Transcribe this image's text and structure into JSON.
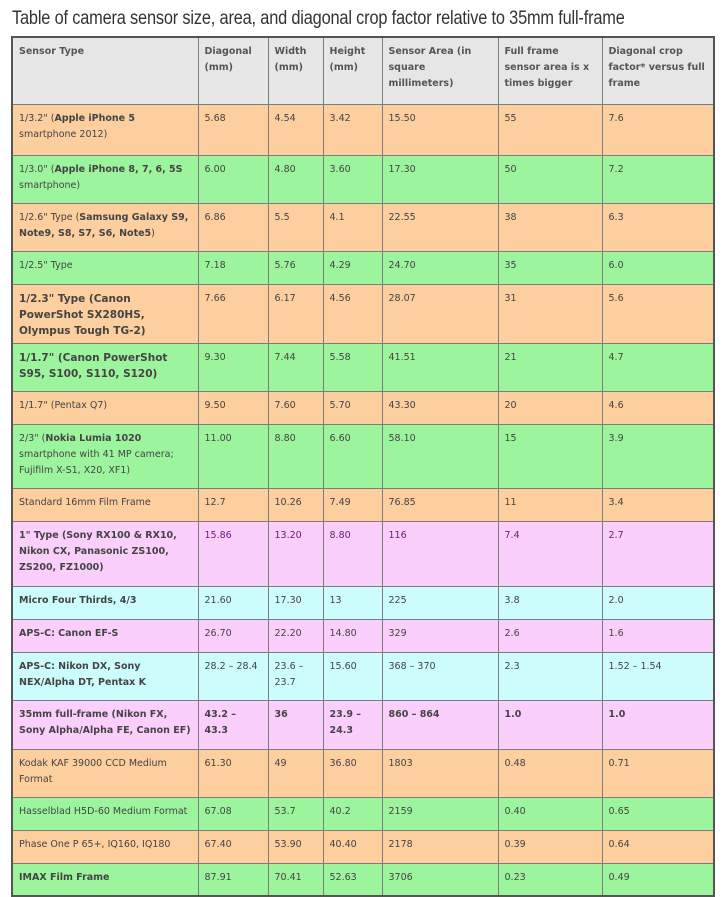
{
  "title": "Table of camera sensor size, area, and diagonal crop factor relative to 35mm full-frame",
  "headers": [
    "Sensor Type",
    "Diagonal (mm)",
    "Width (mm)",
    "Height (mm)",
    "Sensor Area (in square millimeters)",
    "Full frame sensor area is x times bigger",
    "Diagonal crop factor* versus full frame"
  ],
  "rows": [
    {
      "type_prefix": "1/3.2\" (",
      "type_bold": "Apple iPhone 5",
      "type_suffix": " smartphone 2012)",
      "diagonal": "5.68",
      "width": "4.54",
      "height": "3.42",
      "area": "15.50",
      "times": "55",
      "crop": "7.6"
    },
    {
      "type_prefix": "1/3.0\" (",
      "type_bold": "Apple iPhone 8, 7, 6, 5S",
      "type_suffix": " smartphone)",
      "diagonal": "6.00",
      "width": "4.80",
      "height": "3.60",
      "area": "17.30",
      "times": "50",
      "crop": "7.2"
    },
    {
      "type_prefix": "1/2.6\" Type (",
      "type_bold": "Samsung Galaxy S9, Note9, S8, S7, S6, Note5",
      "type_suffix": ")",
      "diagonal": "6.86",
      "width": "5.5",
      "height": "4.1",
      "area": "22.55",
      "times": "38",
      "crop": "6.3"
    },
    {
      "type_prefix": "1/2.5\" Type",
      "type_bold": "",
      "type_suffix": "",
      "diagonal": "7.18",
      "width": "5.76",
      "height": "4.29",
      "area": "24.70",
      "times": "35",
      "crop": "6.0"
    },
    {
      "type_prefix": "",
      "type_bold": "1/2.3\" Type (Canon PowerShot SX280HS, Olympus Tough TG-2)",
      "type_suffix": "",
      "diagonal": "7.66",
      "width": "6.17",
      "height": "4.56",
      "area": "28.07",
      "times": "31",
      "crop": "5.6"
    },
    {
      "type_prefix": "",
      "type_bold": "1/1.7\" (Canon PowerShot S95, S100, S110, S120)",
      "type_suffix": "",
      "diagonal": "9.30",
      "width": "7.44",
      "height": "5.58",
      "area": "41.51",
      "times": "21",
      "crop": "4.7"
    },
    {
      "type_prefix": "1/1.7\" (Pentax Q7)",
      "type_bold": "",
      "type_suffix": "",
      "diagonal": "9.50",
      "width": "7.60",
      "height": "5.70",
      "area": "43.30",
      "times": "20",
      "crop": "4.6"
    },
    {
      "type_prefix": "2/3\" (",
      "type_bold": "Nokia Lumia 1020",
      "type_suffix": " smartphone with 41 MP camera; Fujifilm X-S1, X20, XF1)",
      "diagonal": "11.00",
      "width": "8.80",
      "height": "6.60",
      "area": "58.10",
      "times": "15",
      "crop": "3.9"
    },
    {
      "type_prefix": "Standard 16mm Film Frame",
      "type_bold": "",
      "type_suffix": "",
      "diagonal": "12.7",
      "width": "10.26",
      "height": "7.49",
      "area": "76.85",
      "times": "11",
      "crop": "3.4"
    },
    {
      "type_prefix": "",
      "type_bold": "1\" Type (Sony RX100 & RX10, Nikon CX, Panasonic ZS100, ZS200, FZ1000)",
      "type_suffix": "",
      "diagonal": "15.86",
      "width": "13.20",
      "height": "8.80",
      "area": "116",
      "times": "7.4",
      "crop": "2.7"
    },
    {
      "type_prefix": "",
      "type_bold": "Micro Four Thirds, 4/3",
      "type_suffix": "",
      "diagonal": "21.60",
      "width": "17.30",
      "height": "13",
      "area": "225",
      "times": "3.8",
      "crop": "2.0"
    },
    {
      "type_prefix": "",
      "type_bold": "APS-C: Canon EF-S",
      "type_suffix": "",
      "diagonal": "26.70",
      "width": "22.20",
      "height": "14.80",
      "area": "329",
      "times": "2.6",
      "crop": "1.6"
    },
    {
      "type_prefix": "",
      "type_bold": "APS-C: Nikon DX, Sony NEX/Alpha DT, Pentax K",
      "type_suffix": "",
      "diagonal": "28.2 – 28.4",
      "width": "23.6 – 23.7",
      "height": "15.60",
      "area": "368 – 370",
      "times": "2.3",
      "crop": "1.52 – 1.54"
    },
    {
      "type_prefix": "",
      "type_bold": "35mm full-frame (Nikon FX, Sony Alpha/Alpha FE, Canon EF)",
      "type_suffix": "",
      "diagonal": "43.2 – 43.3",
      "width": "36",
      "height": "23.9 – 24.3",
      "area": "860 – 864",
      "times": "1.0",
      "crop": "1.0"
    },
    {
      "type_prefix": "Kodak KAF 39000 CCD Medium Format",
      "type_bold": "",
      "type_suffix": "",
      "diagonal": "61.30",
      "width": "49",
      "height": "36.80",
      "area": "1803",
      "times": "0.48",
      "crop": "0.71"
    },
    {
      "type_prefix": "Hasselblad H5D-60 Medium Format",
      "type_bold": "",
      "type_suffix": "",
      "diagonal": "67.08",
      "width": "53.7",
      "height": "40.2",
      "area": "2159",
      "times": "0.40",
      "crop": "0.65"
    },
    {
      "type_prefix": "Phase One P 65+, IQ160, IQ180",
      "type_bold": "",
      "type_suffix": "",
      "diagonal": "67.40",
      "width": "53.90",
      "height": "40.40",
      "area": "2178",
      "times": "0.39",
      "crop": "0.64"
    },
    {
      "type_prefix": "",
      "type_bold": "IMAX Film Frame",
      "type_suffix": "",
      "diagonal": "87.91",
      "width": "70.41",
      "height": "52.63",
      "area": "3706",
      "times": "0.23",
      "crop": "0.49"
    }
  ],
  "colors": {
    "orange": "#fdce9e",
    "green": "#9cf59c",
    "pink": "#fbcffb",
    "cyan": "#ccfcfc",
    "header": "#e6e6e6"
  }
}
